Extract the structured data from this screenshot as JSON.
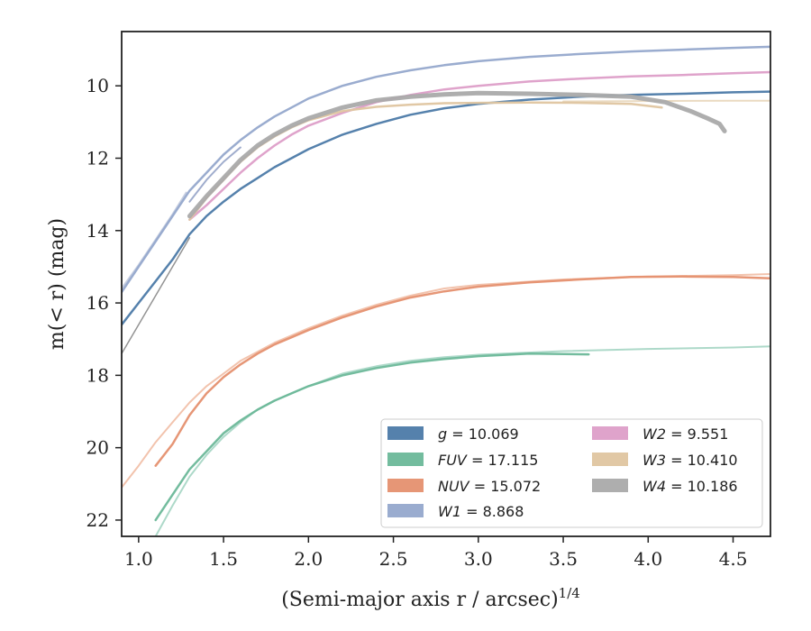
{
  "chart_data": {
    "type": "line",
    "xlabel": "(Semi-major axis r / arcsec)",
    "xlabel_superscript": "1/4",
    "ylabel": "m(< r) (mag)",
    "xlim": [
      0.9,
      4.72
    ],
    "ylim": [
      22.45,
      8.5
    ],
    "y_inverted": true,
    "grid": false,
    "legend_position": "lower-right",
    "x_ticks": [
      1.0,
      1.5,
      2.0,
      2.5,
      3.0,
      3.5,
      4.0,
      4.5
    ],
    "x_tick_labels": [
      "1.0",
      "1.5",
      "2.0",
      "2.5",
      "3.0",
      "3.5",
      "4.0",
      "4.5"
    ],
    "y_ticks": [
      10,
      12,
      14,
      16,
      18,
      20,
      22
    ],
    "y_tick_labels": [
      "10",
      "12",
      "14",
      "16",
      "18",
      "20",
      "22"
    ],
    "series": [
      {
        "name": "g = 10.069",
        "legend_var": "g",
        "legend_val": "10.069",
        "color": "#4c7aa8",
        "width": 2.5,
        "x": [
          0.9,
          1.0,
          1.1,
          1.2,
          1.3,
          1.4,
          1.5,
          1.6,
          1.7,
          1.8,
          1.9,
          2.0,
          2.2,
          2.4,
          2.6,
          2.8,
          3.0,
          3.3,
          3.6,
          3.9,
          4.2,
          4.5,
          4.72
        ],
        "y": [
          16.6,
          16.0,
          15.4,
          14.8,
          14.1,
          13.6,
          13.2,
          12.85,
          12.55,
          12.25,
          12.0,
          11.75,
          11.35,
          11.05,
          10.8,
          10.62,
          10.5,
          10.38,
          10.3,
          10.25,
          10.22,
          10.18,
          10.16
        ]
      },
      {
        "name": "FUV = 17.115",
        "legend_var": "FUV",
        "legend_val": "17.115",
        "color": "#6bb899",
        "width": 2.5,
        "x": [
          1.1,
          1.2,
          1.3,
          1.4,
          1.5,
          1.6,
          1.7,
          1.8,
          1.9,
          2.0,
          2.2,
          2.4,
          2.6,
          2.8,
          3.0,
          3.3,
          3.65
        ],
        "y": [
          22.0,
          21.3,
          20.6,
          20.1,
          19.6,
          19.25,
          18.95,
          18.7,
          18.5,
          18.3,
          18.0,
          17.8,
          17.65,
          17.55,
          17.47,
          17.4,
          17.42
        ]
      },
      {
        "name": "NUV = 15.072",
        "legend_var": "NUV",
        "legend_val": "15.072",
        "color": "#e5906f",
        "width": 2.5,
        "x": [
          1.1,
          1.2,
          1.3,
          1.4,
          1.5,
          1.6,
          1.7,
          1.8,
          1.9,
          2.0,
          2.2,
          2.4,
          2.6,
          2.8,
          3.0,
          3.3,
          3.6,
          3.9,
          4.2,
          4.5,
          4.72
        ],
        "y": [
          20.5,
          19.9,
          19.1,
          18.5,
          18.05,
          17.7,
          17.4,
          17.15,
          16.95,
          16.75,
          16.4,
          16.1,
          15.85,
          15.68,
          15.55,
          15.43,
          15.35,
          15.28,
          15.27,
          15.28,
          15.32
        ]
      },
      {
        "name": "W1 = 8.868",
        "legend_var": "W1",
        "legend_val": "8.868",
        "color": "#95a8cc",
        "width": 2.5,
        "x": [
          0.9,
          1.0,
          1.1,
          1.2,
          1.3,
          1.4,
          1.5,
          1.6,
          1.7,
          1.8,
          1.9,
          2.0,
          2.2,
          2.4,
          2.6,
          2.8,
          3.0,
          3.3,
          3.6,
          3.9,
          4.2,
          4.5,
          4.72
        ],
        "y": [
          15.7,
          15.0,
          14.3,
          13.6,
          12.9,
          12.4,
          11.9,
          11.5,
          11.15,
          10.85,
          10.6,
          10.35,
          10.0,
          9.75,
          9.57,
          9.43,
          9.32,
          9.2,
          9.12,
          9.05,
          9.0,
          8.95,
          8.92
        ]
      },
      {
        "name": "W2 = 9.551",
        "legend_var": "W2",
        "legend_val": "9.551",
        "color": "#dd9ec8",
        "width": 2.5,
        "x": [
          1.3,
          1.4,
          1.5,
          1.6,
          1.7,
          1.8,
          1.9,
          2.0,
          2.2,
          2.4,
          2.6,
          2.8,
          3.0,
          3.3,
          3.6,
          3.9,
          4.2,
          4.5,
          4.72
        ],
        "y": [
          13.7,
          13.3,
          12.85,
          12.4,
          12.0,
          11.65,
          11.35,
          11.1,
          10.75,
          10.45,
          10.25,
          10.1,
          10.0,
          9.88,
          9.8,
          9.74,
          9.7,
          9.65,
          9.62
        ]
      },
      {
        "name": "W3 = 10.410",
        "legend_var": "W3",
        "legend_val": "10.410",
        "color": "#dfc5a0",
        "width": 2.5,
        "x": [
          1.3,
          1.4,
          1.5,
          1.6,
          1.7,
          1.8,
          1.9,
          2.0,
          2.2,
          2.4,
          2.6,
          2.8,
          3.0,
          3.3,
          3.6,
          3.9,
          4.08
        ],
        "y": [
          13.7,
          13.1,
          12.6,
          12.1,
          11.7,
          11.4,
          11.15,
          10.95,
          10.7,
          10.58,
          10.52,
          10.48,
          10.47,
          10.46,
          10.47,
          10.5,
          10.6
        ]
      },
      {
        "name": "W4 = 10.186",
        "legend_var": "W4",
        "legend_val": "10.186",
        "color": "#aaaaaa",
        "width": 5,
        "x": [
          1.3,
          1.4,
          1.5,
          1.6,
          1.7,
          1.8,
          1.9,
          2.0,
          2.2,
          2.4,
          2.6,
          2.8,
          3.0,
          3.3,
          3.6,
          3.9,
          4.1,
          4.25,
          4.35,
          4.42,
          4.45
        ],
        "y": [
          13.6,
          13.05,
          12.55,
          12.05,
          11.65,
          11.35,
          11.1,
          10.9,
          10.6,
          10.4,
          10.3,
          10.24,
          10.2,
          10.22,
          10.25,
          10.3,
          10.45,
          10.7,
          10.9,
          11.05,
          11.25
        ]
      }
    ],
    "extra_lines": [
      {
        "color": "#9fd2bf",
        "width": 2,
        "x": [
          1.1,
          1.2,
          1.3,
          1.4,
          1.5,
          1.6,
          1.7,
          1.8,
          1.9,
          2.0,
          2.2,
          2.4,
          2.6,
          2.8,
          3.0,
          3.5,
          4.0,
          4.5,
          4.72
        ],
        "y": [
          22.45,
          21.6,
          20.8,
          20.2,
          19.7,
          19.3,
          18.95,
          18.7,
          18.5,
          18.3,
          17.95,
          17.75,
          17.6,
          17.5,
          17.43,
          17.33,
          17.27,
          17.23,
          17.2
        ]
      },
      {
        "color": "#f0b89f",
        "width": 2,
        "x": [
          0.9,
          1.0,
          1.1,
          1.2,
          1.3,
          1.4,
          1.5,
          1.6,
          1.7,
          1.8,
          1.9,
          2.0,
          2.2,
          2.4,
          2.6,
          2.8,
          3.0,
          3.5,
          4.0,
          4.5,
          4.72
        ],
        "y": [
          21.1,
          20.5,
          19.85,
          19.3,
          18.75,
          18.3,
          17.95,
          17.6,
          17.35,
          17.1,
          16.9,
          16.7,
          16.35,
          16.05,
          15.8,
          15.6,
          15.5,
          15.35,
          15.27,
          15.23,
          15.2
        ]
      },
      {
        "color": "#bcc6dc",
        "width": 2,
        "x": [
          0.9,
          1.0,
          1.1,
          1.2,
          1.28
        ],
        "y": [
          15.6,
          14.95,
          14.25,
          13.55,
          12.95
        ]
      },
      {
        "color": "#8f9fc4",
        "width": 2,
        "x": [
          1.3,
          1.4,
          1.5,
          1.6
        ],
        "y": [
          13.2,
          12.6,
          12.1,
          11.7
        ]
      },
      {
        "color": "#e6d4b6",
        "width": 2,
        "x": [
          3.5,
          4.0,
          4.5,
          4.72
        ],
        "y": [
          10.43,
          10.42,
          10.41,
          10.41
        ]
      },
      {
        "color": "#808080",
        "width": 1.5,
        "x": [
          0.9,
          1.0,
          1.1,
          1.2,
          1.3
        ],
        "y": [
          17.4,
          16.6,
          15.8,
          15.0,
          14.2
        ]
      }
    ]
  }
}
